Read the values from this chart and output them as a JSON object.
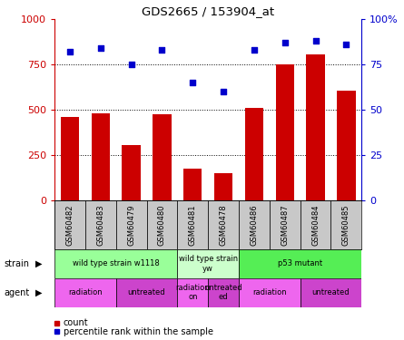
{
  "title": "GDS2665 / 153904_at",
  "samples": [
    "GSM60482",
    "GSM60483",
    "GSM60479",
    "GSM60480",
    "GSM60481",
    "GSM60478",
    "GSM60486",
    "GSM60487",
    "GSM60484",
    "GSM60485"
  ],
  "counts": [
    460,
    480,
    305,
    475,
    175,
    150,
    510,
    750,
    805,
    605
  ],
  "percentiles": [
    82,
    84,
    75,
    83,
    65,
    60,
    83,
    87,
    88,
    86
  ],
  "bar_color": "#cc0000",
  "dot_color": "#0000cc",
  "ylim_left": [
    0,
    1000
  ],
  "ylim_right": [
    0,
    100
  ],
  "yticks_left": [
    0,
    250,
    500,
    750,
    1000
  ],
  "yticks_right": [
    0,
    25,
    50,
    75,
    100
  ],
  "strain_groups": [
    {
      "label": "wild type strain w1118",
      "start": 0,
      "end": 4,
      "color": "#99ff99"
    },
    {
      "label": "wild type strain\nyw",
      "start": 4,
      "end": 6,
      "color": "#ccffcc"
    },
    {
      "label": "p53 mutant",
      "start": 6,
      "end": 10,
      "color": "#55ee55"
    }
  ],
  "agent_groups": [
    {
      "label": "radiation",
      "start": 0,
      "end": 2,
      "color": "#ee66ee"
    },
    {
      "label": "untreated",
      "start": 2,
      "end": 4,
      "color": "#cc44cc"
    },
    {
      "label": "radiation\non",
      "start": 4,
      "end": 5,
      "color": "#ee66ee"
    },
    {
      "label": "untreated\ned",
      "start": 5,
      "end": 6,
      "color": "#cc44cc"
    },
    {
      "label": "radiation",
      "start": 6,
      "end": 8,
      "color": "#ee66ee"
    },
    {
      "label": "untreated",
      "start": 8,
      "end": 10,
      "color": "#cc44cc"
    }
  ],
  "grid_color": "#000000",
  "bg_color": "#ffffff",
  "sample_bg": "#c8c8c8",
  "legend_red_label": "count",
  "legend_blue_label": "percentile rank within the sample",
  "strain_label": "strain",
  "agent_label": "agent"
}
